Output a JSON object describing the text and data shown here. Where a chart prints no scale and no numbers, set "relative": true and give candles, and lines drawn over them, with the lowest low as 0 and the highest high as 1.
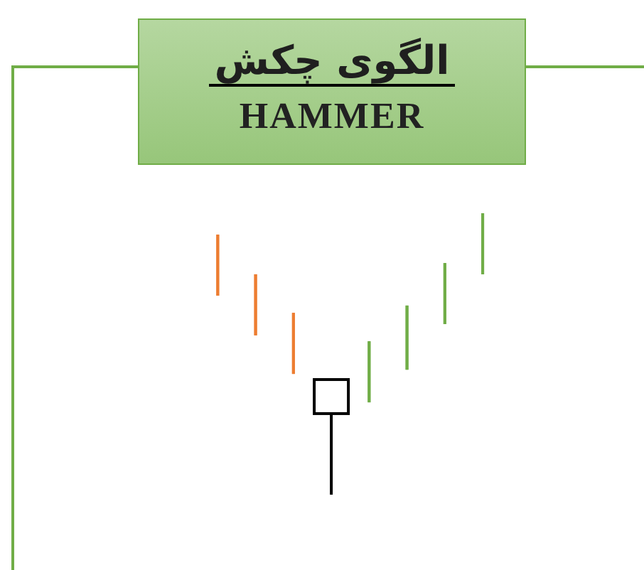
{
  "chart_data": {
    "type": "candlestick",
    "title": "الگوی چکش",
    "subtitle": "HAMMER",
    "relative": true,
    "categories": [
      null,
      null,
      null,
      null,
      null,
      null,
      null,
      null
    ],
    "ohlc": [
      [
        0.924,
        0.924,
        0.707,
        0.707
      ],
      [
        0.783,
        0.783,
        0.566,
        0.566
      ],
      [
        0.646,
        0.646,
        0.429,
        0.429
      ],
      [
        0.288,
        0.409,
        0,
        0.409
      ],
      [
        0.328,
        0.545,
        0.328,
        0.545
      ],
      [
        0.444,
        0.672,
        0.444,
        0.672
      ],
      [
        0.606,
        0.823,
        0.606,
        0.823
      ],
      [
        0.783,
        1,
        0.783,
        1
      ]
    ],
    "colors": [
      "#ed7d31",
      "#ed7d31",
      "#ed7d31",
      "#000000",
      "#70ad47",
      "#70ad47",
      "#70ad47",
      "#70ad47"
    ]
  }
}
